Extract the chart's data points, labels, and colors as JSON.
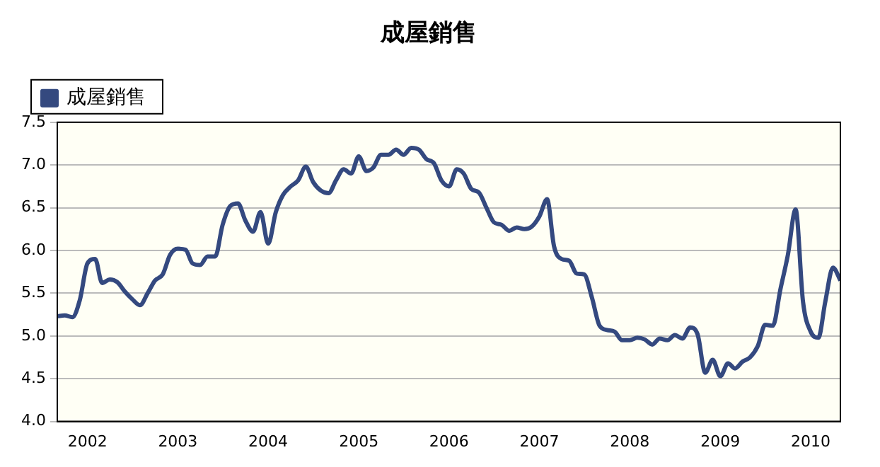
{
  "chart_data": {
    "type": "line",
    "title": "成屋銷售",
    "x": [
      "2001-09",
      "2001-10",
      "2001-11",
      "2001-12",
      "2002-01",
      "2002-02",
      "2002-03",
      "2002-04",
      "2002-05",
      "2002-06",
      "2002-07",
      "2002-08",
      "2002-09",
      "2002-10",
      "2002-11",
      "2002-12",
      "2003-01",
      "2003-02",
      "2003-03",
      "2003-04",
      "2003-05",
      "2003-06",
      "2003-07",
      "2003-08",
      "2003-09",
      "2003-10",
      "2003-11",
      "2003-12",
      "2004-01",
      "2004-02",
      "2004-03",
      "2004-04",
      "2004-05",
      "2004-06",
      "2004-07",
      "2004-08",
      "2004-09",
      "2004-10",
      "2004-11",
      "2004-12",
      "2005-01",
      "2005-02",
      "2005-03",
      "2005-04",
      "2005-05",
      "2005-06",
      "2005-07",
      "2005-08",
      "2005-09",
      "2005-10",
      "2005-11",
      "2005-12",
      "2006-01",
      "2006-02",
      "2006-03",
      "2006-04",
      "2006-05",
      "2006-06",
      "2006-07",
      "2006-08",
      "2006-09",
      "2006-10",
      "2006-11",
      "2006-12",
      "2007-01",
      "2007-02",
      "2007-03",
      "2007-04",
      "2007-05",
      "2007-06",
      "2007-07",
      "2007-08",
      "2007-09",
      "2007-10",
      "2007-11",
      "2007-12",
      "2008-01",
      "2008-02",
      "2008-03",
      "2008-04",
      "2008-05",
      "2008-06",
      "2008-07",
      "2008-08",
      "2008-09",
      "2008-10",
      "2008-11",
      "2008-12",
      "2009-01",
      "2009-02",
      "2009-03",
      "2009-04",
      "2009-05",
      "2009-06",
      "2009-07",
      "2009-08",
      "2009-09",
      "2009-10",
      "2009-11",
      "2009-12",
      "2010-01",
      "2010-02",
      "2010-03",
      "2010-04",
      "2010-05"
    ],
    "series": [
      {
        "name": "成屋銷售",
        "color": "#34497f",
        "values": [
          5.23,
          5.24,
          5.22,
          5.42,
          5.85,
          5.9,
          5.62,
          5.66,
          5.63,
          5.52,
          5.43,
          5.36,
          5.5,
          5.65,
          5.72,
          5.95,
          6.02,
          6.01,
          5.85,
          5.83,
          5.93,
          5.93,
          6.3,
          6.52,
          6.55,
          6.35,
          6.22,
          6.45,
          6.08,
          6.45,
          6.65,
          6.75,
          6.82,
          6.98,
          6.8,
          6.7,
          6.67,
          6.82,
          6.95,
          6.9,
          7.1,
          6.93,
          6.97,
          7.12,
          7.12,
          7.18,
          7.12,
          7.2,
          7.18,
          7.07,
          7.02,
          6.82,
          6.75,
          6.95,
          6.9,
          6.72,
          6.68,
          6.5,
          6.33,
          6.3,
          6.23,
          6.27,
          6.25,
          6.28,
          6.4,
          6.6,
          6.05,
          5.9,
          5.88,
          5.73,
          5.72,
          5.45,
          5.12,
          5.07,
          5.05,
          4.95,
          4.95,
          4.98,
          4.96,
          4.9,
          4.97,
          4.95,
          5.01,
          4.97,
          5.1,
          5.02,
          4.57,
          4.72,
          4.53,
          4.68,
          4.62,
          4.7,
          4.75,
          4.88,
          5.13,
          5.12,
          5.55,
          5.95,
          6.48,
          5.4,
          5.05,
          4.98,
          5.4,
          5.8,
          5.65
        ]
      }
    ],
    "xlim": [
      "2001-09",
      "2010-05"
    ],
    "xticks": [
      "2002",
      "2003",
      "2004",
      "2005",
      "2006",
      "2007",
      "2008",
      "2009",
      "2010"
    ],
    "ylim": [
      4.0,
      7.5
    ],
    "yticks": [
      {
        "value": 4.0,
        "label": "4.0"
      },
      {
        "value": 4.5,
        "label": "4.5"
      },
      {
        "value": 5.0,
        "label": "5.0"
      },
      {
        "value": 5.5,
        "label": "5.5"
      },
      {
        "value": 6.0,
        "label": "6.0"
      },
      {
        "value": 6.5,
        "label": "6.5"
      },
      {
        "value": 7.0,
        "label": "7.0"
      },
      {
        "value": 7.5,
        "label": "7.5"
      }
    ],
    "grid": "y",
    "legend": "top left",
    "marker": "none",
    "line_style": "solid"
  }
}
